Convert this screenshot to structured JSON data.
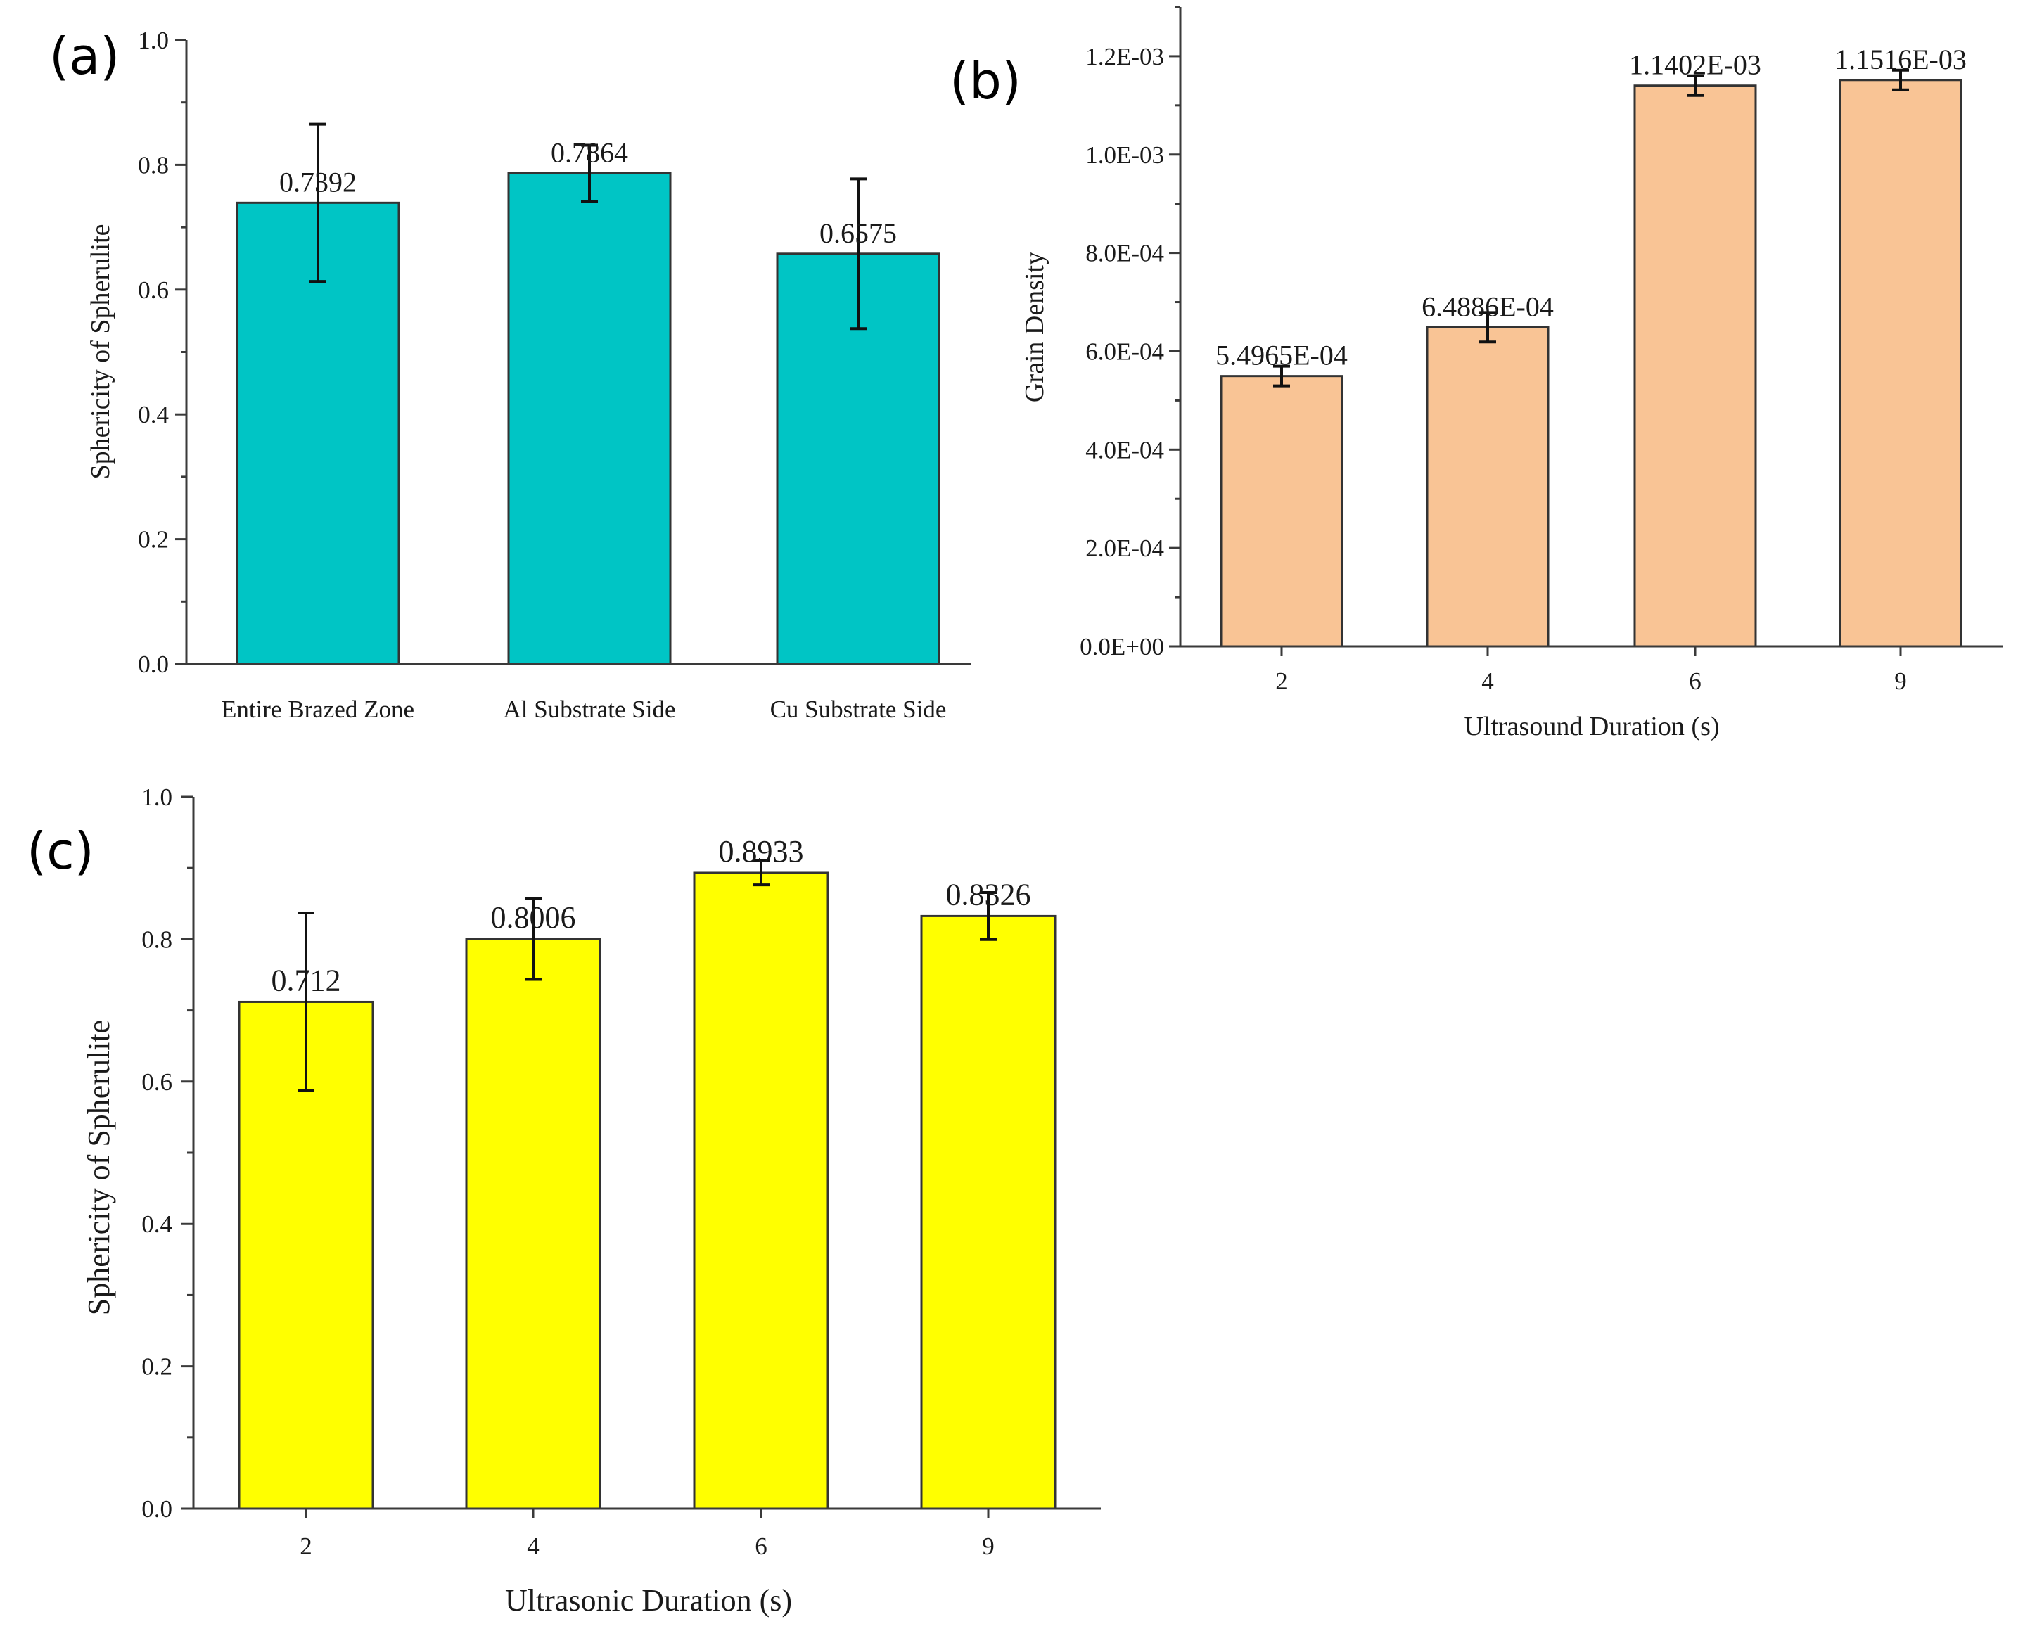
{
  "chart_data": [
    {
      "panel": "(a)",
      "type": "bar",
      "categories": [
        "Entire Brazed Zone",
        "Al Substrate Side",
        "Cu Substrate Side"
      ],
      "values": [
        0.7392,
        0.7864,
        0.6575
      ],
      "errors": [
        0.126,
        0.045,
        0.12
      ],
      "value_labels": [
        "0.7392",
        "0.7864",
        "0.6575"
      ],
      "title": "",
      "xlabel": "",
      "ylabel": "Sphericity of  Spherulite",
      "ylim": [
        0,
        1.0
      ],
      "yticks": [
        0.0,
        0.2,
        0.4,
        0.6,
        0.8,
        1.0
      ],
      "ytick_labels": [
        "0.0",
        "0.2",
        "0.4",
        "0.6",
        "0.8",
        "1.0"
      ],
      "bar_color": "#00c5c5"
    },
    {
      "panel": "(b)",
      "type": "bar",
      "categories": [
        "2",
        "4",
        "6",
        "9"
      ],
      "values": [
        0.00054965,
        0.00064886,
        0.0011402,
        0.0011516
      ],
      "errors": [
        2e-05,
        3e-05,
        2e-05,
        2e-05
      ],
      "value_labels": [
        "5.4965E-04",
        "6.4886E-04",
        "1.1402E-03",
        "1.1516E-03"
      ],
      "title": "",
      "xlabel": "Ultrasound Duration (s)",
      "ylabel": "Grain Density",
      "ylim": [
        0,
        0.0013
      ],
      "yticks": [
        0,
        0.0002,
        0.0004,
        0.0006,
        0.0008,
        0.001,
        0.0012
      ],
      "ytick_labels": [
        "0.0E+00",
        "2.0E-04",
        "4.0E-04",
        "6.0E-04",
        "8.0E-04",
        "1.0E-03",
        "1.2E-03"
      ],
      "bar_color": "#f9c495"
    },
    {
      "panel": "(c)",
      "type": "bar",
      "categories": [
        "2",
        "4",
        "6",
        "9"
      ],
      "values": [
        0.712,
        0.8006,
        0.8933,
        0.8326
      ],
      "errors": [
        0.125,
        0.057,
        0.017,
        0.033
      ],
      "value_labels": [
        "0.712",
        "0.8006",
        "0.8933",
        "0.8326"
      ],
      "title": "",
      "xlabel": "Ultrasonic Duration (s)",
      "ylabel": "Sphericity of Spherulite",
      "ylim": [
        0,
        1.0
      ],
      "yticks": [
        0.0,
        0.2,
        0.4,
        0.6,
        0.8,
        1.0
      ],
      "ytick_labels": [
        "0.0",
        "0.2",
        "0.4",
        "0.6",
        "0.8",
        "1.0"
      ],
      "bar_color": "#ffff00"
    }
  ]
}
